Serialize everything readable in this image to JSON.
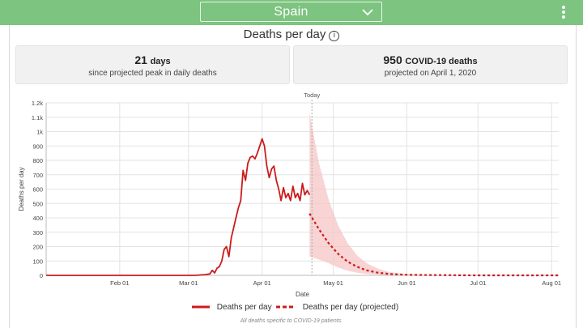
{
  "header": {
    "country_select": "Spain",
    "country_icon": "chevron-down-icon",
    "menu_icon": "kebab-menu-icon"
  },
  "title": "Deaths per day",
  "title_icon": "info-icon",
  "cards": [
    {
      "value": "21",
      "unit": "days",
      "caption": "since projected peak in daily deaths"
    },
    {
      "value": "950",
      "unit": "COVID-19 deaths",
      "caption": "projected on April 1, 2020"
    }
  ],
  "footnote": "All deaths specific to COVID-19 patients.",
  "chart_data": {
    "type": "line",
    "title": "",
    "xlabel": "Date",
    "ylabel": "Deaths per day",
    "xlim": [
      "2020-01-01",
      "2020-08-04"
    ],
    "ylim": [
      0,
      1200
    ],
    "yticks": [
      0,
      100,
      200,
      300,
      400,
      500,
      600,
      700,
      800,
      900,
      1000,
      1100,
      1200
    ],
    "ytick_labels": [
      "0",
      "100",
      "200",
      "300",
      "400",
      "500",
      "600",
      "700",
      "800",
      "900",
      "1k",
      "1.1k",
      "1.2k"
    ],
    "xticks": [
      "2020-02-01",
      "2020-03-01",
      "2020-04-01",
      "2020-05-01",
      "2020-06-01",
      "2020-07-01",
      "2020-08-01"
    ],
    "xtick_labels": [
      "Feb 01",
      "Mar 01",
      "Apr 01",
      "May 01",
      "Jun 01",
      "Jul 01",
      "Aug 01"
    ],
    "today_label": "Today",
    "today_date": "2020-04-22",
    "grid": true,
    "legend_position": "bottom",
    "colors": {
      "series": "#cc1b1b",
      "band": "#f6c5c5",
      "grid": "#e3e3e3",
      "today": "#aaaaaa"
    },
    "series": [
      {
        "name": "Deaths per day",
        "style": "solid",
        "x": [
          "2020-01-01",
          "2020-03-04",
          "2020-03-06",
          "2020-03-08",
          "2020-03-10",
          "2020-03-11",
          "2020-03-12",
          "2020-03-13",
          "2020-03-14",
          "2020-03-15",
          "2020-03-16",
          "2020-03-17",
          "2020-03-18",
          "2020-03-19",
          "2020-03-20",
          "2020-03-21",
          "2020-03-22",
          "2020-03-23",
          "2020-03-24",
          "2020-03-25",
          "2020-03-26",
          "2020-03-27",
          "2020-03-28",
          "2020-03-29",
          "2020-03-30",
          "2020-03-31",
          "2020-04-01",
          "2020-04-02",
          "2020-04-03",
          "2020-04-04",
          "2020-04-05",
          "2020-04-06",
          "2020-04-07",
          "2020-04-08",
          "2020-04-09",
          "2020-04-10",
          "2020-04-11",
          "2020-04-12",
          "2020-04-13",
          "2020-04-14",
          "2020-04-15",
          "2020-04-16",
          "2020-04-17",
          "2020-04-18",
          "2020-04-19",
          "2020-04-20",
          "2020-04-21"
        ],
        "y": [
          0,
          0,
          3,
          5,
          10,
          35,
          17,
          50,
          60,
          100,
          180,
          200,
          130,
          260,
          330,
          400,
          470,
          520,
          730,
          660,
          780,
          820,
          830,
          810,
          850,
          900,
          950,
          900,
          760,
          680,
          740,
          760,
          660,
          600,
          520,
          610,
          540,
          570,
          520,
          620,
          540,
          570,
          520,
          640,
          560,
          590,
          560
        ]
      },
      {
        "name": "Deaths per day (projected)",
        "style": "dashed",
        "x": [
          "2020-04-21",
          "2020-04-25",
          "2020-04-29",
          "2020-05-03",
          "2020-05-07",
          "2020-05-11",
          "2020-05-15",
          "2020-05-20",
          "2020-05-25",
          "2020-06-01",
          "2020-06-10",
          "2020-06-20",
          "2020-07-01",
          "2020-07-15",
          "2020-08-04"
        ],
        "y": [
          430,
          320,
          225,
          150,
          95,
          60,
          35,
          18,
          9,
          4,
          2,
          1,
          0,
          0,
          0
        ]
      }
    ],
    "uncertainty_band": {
      "x": [
        "2020-04-21",
        "2020-04-25",
        "2020-04-29",
        "2020-05-03",
        "2020-05-07",
        "2020-05-11",
        "2020-05-15",
        "2020-05-20",
        "2020-05-25",
        "2020-06-01",
        "2020-06-10",
        "2020-06-20",
        "2020-07-01"
      ],
      "upper": [
        1130,
        780,
        530,
        350,
        225,
        140,
        85,
        45,
        22,
        9,
        4,
        2,
        0
      ],
      "lower": [
        130,
        110,
        85,
        55,
        32,
        18,
        10,
        5,
        2,
        1,
        0,
        0,
        0
      ]
    }
  }
}
